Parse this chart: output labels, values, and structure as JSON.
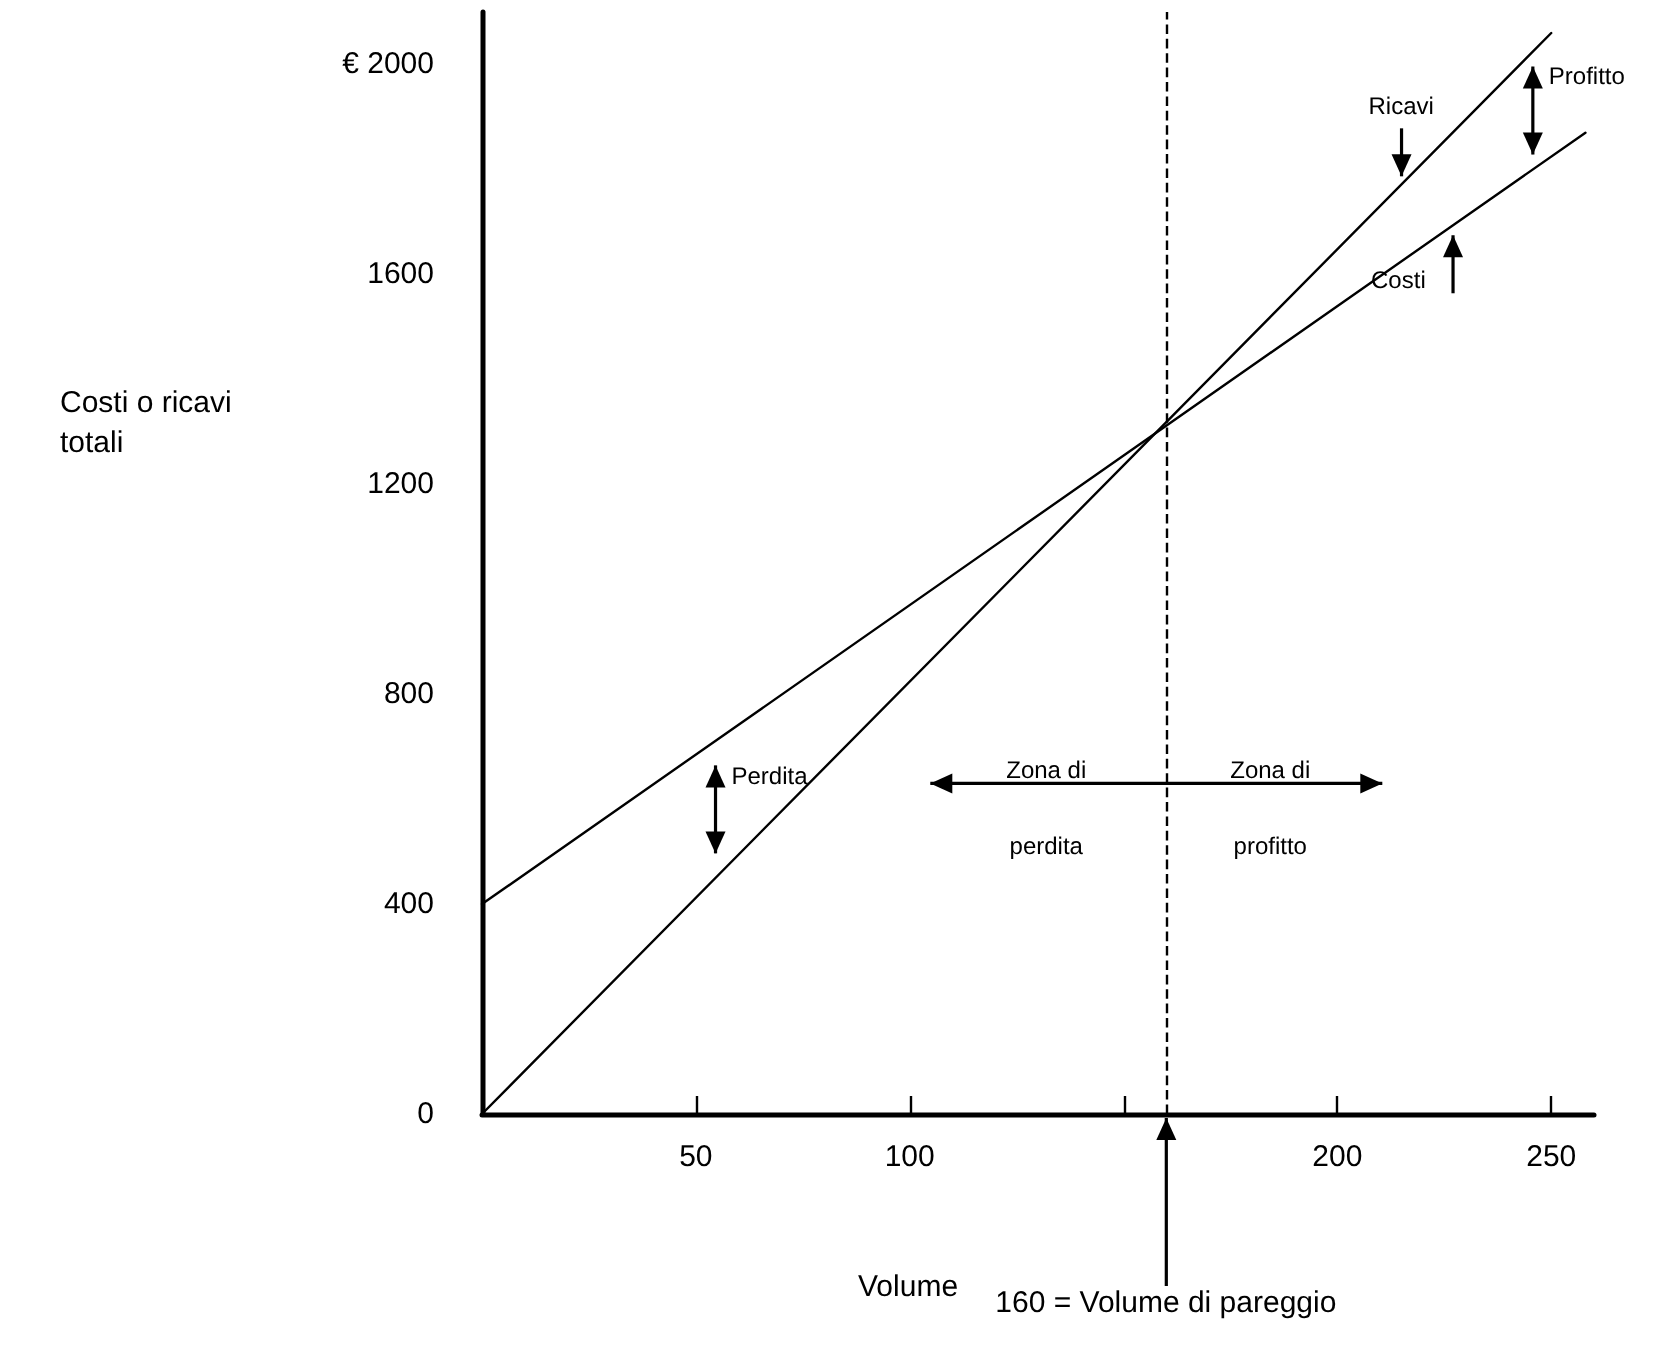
{
  "chart_data": {
    "type": "line",
    "xlabel": "Volume",
    "ylabel": "Costi o ricavi totali",
    "series": [
      {
        "name": "Ricavi",
        "color": "#000000",
        "x": [
          0,
          250
        ],
        "values": [
          0,
          2060
        ]
      },
      {
        "name": "Costi",
        "color": "#000000",
        "x": [
          0,
          258
        ],
        "values": [
          400,
          1870
        ]
      }
    ],
    "xlim": [
      0,
      260
    ],
    "ylim": [
      0,
      2100
    ],
    "xticks": [
      50,
      100,
      {
        "value": 150,
        "label": null
      },
      200,
      250
    ],
    "yticks": [
      0,
      400,
      800,
      1200,
      1600,
      {
        "value": 2000,
        "label": "€ 2000"
      }
    ],
    "ref_lines": [
      {
        "axis": "x",
        "value": 160,
        "label": "160 = Volume di pareggio",
        "color": "#000000",
        "line_style": "dashed"
      }
    ],
    "annotations": [
      "Perdita",
      "Profitto",
      "Zona di perdita",
      "Zona di profitto"
    ],
    "grid": false,
    "legend": false,
    "marker": "none",
    "line_style": "solid"
  }
}
